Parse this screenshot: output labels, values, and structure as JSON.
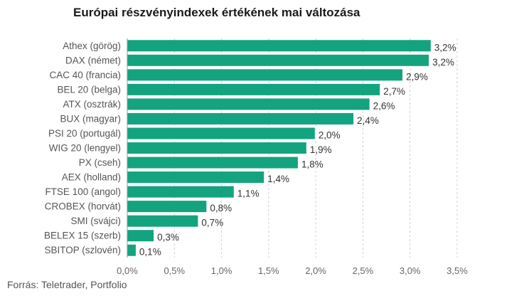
{
  "title": "Európai részvényindexek értékének mai változása",
  "source": "Forrás: Teletrader, Portfolio",
  "colors": {
    "bar": "#14a37f",
    "grid": "#d0d0d0",
    "axis": "#999999"
  },
  "chart_data": {
    "type": "bar",
    "orientation": "horizontal",
    "title": "Európai részvényindexek értékének mai változása",
    "categories": [
      "Athex (görög)",
      "DAX (német)",
      "CAC 40 (francia)",
      "BEL 20 (belga)",
      "ATX (osztrák)",
      "BUX (magyar)",
      "PSI 20 (portugál)",
      "WIG 20 (lengyel)",
      "PX (cseh)",
      "AEX (holland)",
      "FTSE 100 (angol)",
      "CROBEX (horvát)",
      "SMI (svájci)",
      "BELEX 15 (szerb)",
      "SBITOP (szlovén)"
    ],
    "values": [
      3.22,
      3.2,
      2.92,
      2.68,
      2.57,
      2.4,
      1.99,
      1.9,
      1.81,
      1.45,
      1.13,
      0.84,
      0.75,
      0.28,
      0.09
    ],
    "value_labels": [
      "3,2%",
      "3,2%",
      "2,9%",
      "2,7%",
      "2,6%",
      "2,4%",
      "2,0%",
      "1,9%",
      "1,8%",
      "1,4%",
      "1,1%",
      "0,8%",
      "0,7%",
      "0,3%",
      "0,1%"
    ],
    "xlim": [
      0,
      3.5
    ],
    "x_ticks": [
      0,
      0.5,
      1.0,
      1.5,
      2.0,
      2.5,
      3.0,
      3.5
    ],
    "x_tick_labels": [
      "0,0%",
      "0,5%",
      "1,0%",
      "1,5%",
      "2,0%",
      "2,5%",
      "3,0%",
      "3,5%"
    ],
    "grid": true,
    "legend": "none",
    "xlabel": "",
    "ylabel": ""
  }
}
